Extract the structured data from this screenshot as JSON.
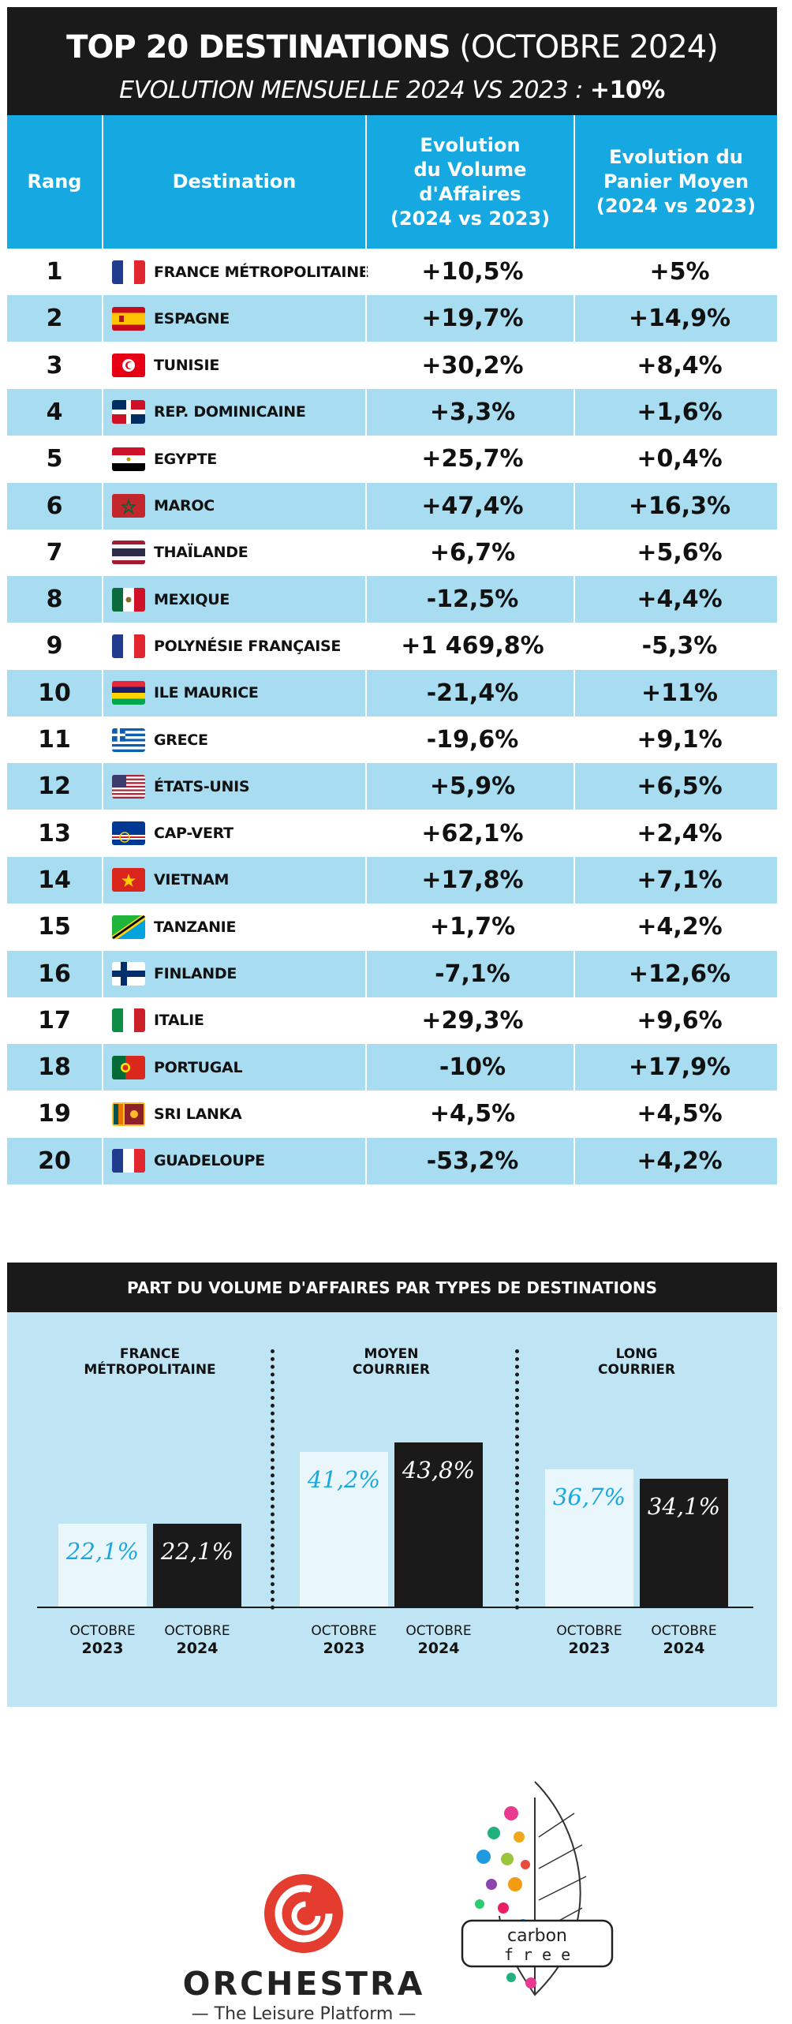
{
  "header": {
    "title_bold": "TOP 20 DESTINATIONS",
    "title_rest": " (OCTOBRE 2024)",
    "subtitle": "EVOLUTION MENSUELLE 2024 VS 2023 : ",
    "subtitle_value": "+10%"
  },
  "table": {
    "columns": [
      "Rang",
      "Destination",
      "Evolution\ndu Volume\nd'Affaires\n(2024 vs 2023)",
      "Evolution du\nPanier Moyen\n(2024 vs 2023)"
    ],
    "rows": [
      {
        "rank": "1",
        "destination": "FRANCE MÉTROPOLITAINE",
        "flag": "france",
        "volume": "+10,5%",
        "panier": "+5%"
      },
      {
        "rank": "2",
        "destination": "ESPAGNE",
        "flag": "spain",
        "volume": "+19,7%",
        "panier": "+14,9%"
      },
      {
        "rank": "3",
        "destination": "TUNISIE",
        "flag": "tunisia",
        "volume": "+30,2%",
        "panier": "+8,4%"
      },
      {
        "rank": "4",
        "destination": "REP. DOMINICAINE",
        "flag": "dominican-republic",
        "volume": "+3,3%",
        "panier": "+1,6%"
      },
      {
        "rank": "5",
        "destination": "EGYPTE",
        "flag": "egypt",
        "volume": "+25,7%",
        "panier": "+0,4%"
      },
      {
        "rank": "6",
        "destination": "MAROC",
        "flag": "morocco",
        "volume": "+47,4%",
        "panier": "+16,3%"
      },
      {
        "rank": "7",
        "destination": "THAÏLANDE",
        "flag": "thailand",
        "volume": "+6,7%",
        "panier": "+5,6%"
      },
      {
        "rank": "8",
        "destination": "MEXIQUE",
        "flag": "mexico",
        "volume": "-12,5%",
        "panier": "+4,4%"
      },
      {
        "rank": "9",
        "destination": "POLYNÉSIE FRANÇAISE",
        "flag": "france",
        "volume": "+1 469,8%",
        "panier": "-5,3%"
      },
      {
        "rank": "10",
        "destination": "ILE MAURICE",
        "flag": "mauritius",
        "volume": "-21,4%",
        "panier": "+11%"
      },
      {
        "rank": "11",
        "destination": "GRECE",
        "flag": "greece",
        "volume": "-19,6%",
        "panier": "+9,1%"
      },
      {
        "rank": "12",
        "destination": "ÉTATS-UNIS",
        "flag": "usa",
        "volume": "+5,9%",
        "panier": "+6,5%"
      },
      {
        "rank": "13",
        "destination": "CAP-VERT",
        "flag": "cape-verde",
        "volume": "+62,1%",
        "panier": "+2,4%"
      },
      {
        "rank": "14",
        "destination": "VIETNAM",
        "flag": "vietnam",
        "volume": "+17,8%",
        "panier": "+7,1%"
      },
      {
        "rank": "15",
        "destination": "TANZANIE",
        "flag": "tanzania",
        "volume": "+1,7%",
        "panier": "+4,2%"
      },
      {
        "rank": "16",
        "destination": "FINLANDE",
        "flag": "finland",
        "volume": "-7,1%",
        "panier": "+12,6%"
      },
      {
        "rank": "17",
        "destination": "ITALIE",
        "flag": "italy",
        "volume": "+29,3%",
        "panier": "+9,6%"
      },
      {
        "rank": "18",
        "destination": "PORTUGAL",
        "flag": "portugal",
        "volume": "-10%",
        "panier": "+17,9%"
      },
      {
        "rank": "19",
        "destination": "SRI LANKA",
        "flag": "sri-lanka",
        "volume": "+4,5%",
        "panier": "+4,5%"
      },
      {
        "rank": "20",
        "destination": "GUADELOUPE",
        "flag": "france",
        "volume": "-53,2%",
        "panier": "+4,2%"
      }
    ]
  },
  "chart_data": [
    {
      "type": "table",
      "title": "TOP 20 DESTINATIONS (OCTOBRE 2024)",
      "subtitle": "EVOLUTION MENSUELLE 2024 VS 2023 : +10%",
      "columns": [
        "Rang",
        "Destination",
        "Evolution du Volume d'Affaires (2024 vs 2023)",
        "Evolution du Panier Moyen (2024 vs 2023)"
      ]
    },
    {
      "type": "bar",
      "title": "PART DU VOLUME D'AFFAIRES PAR TYPES DE DESTINATIONS",
      "categories": [
        "FRANCE\nMÉTROPOLITAINE",
        "MOYEN\nCOURRIER",
        "LONG\nCOURRIER"
      ],
      "series": [
        {
          "name": "OCTOBRE 2023",
          "values": [
            22.1,
            41.2,
            36.7
          ],
          "labels": [
            "22,1%",
            "41,2%",
            "36,7%"
          ],
          "color": "#e9f7fd",
          "label_color": "#1aa8dc"
        },
        {
          "name": "OCTOBRE 2024",
          "values": [
            22.1,
            43.8,
            34.1
          ],
          "labels": [
            "22,1%",
            "43,8%",
            "34,1%"
          ],
          "color": "#1a1a1a",
          "label_color": "#ffffff"
        }
      ],
      "x_month": "OCTOBRE",
      "x_years": [
        "2023",
        "2024"
      ],
      "ylim": [
        0,
        60
      ],
      "grid": false
    }
  ],
  "colors": {
    "header_bg": "#1a1a1a",
    "column_header_bg": "#16a9e1",
    "row_alt_bg": "#a8dcf0",
    "chart_bg": "#bfe5f5",
    "brand_red": "#e43d30"
  },
  "footer": {
    "brand_name": "ORCHESTRA",
    "brand_tagline": "— The Leisure Platform —",
    "carbon_line1": "carbon",
    "carbon_line2": "f r e e"
  }
}
